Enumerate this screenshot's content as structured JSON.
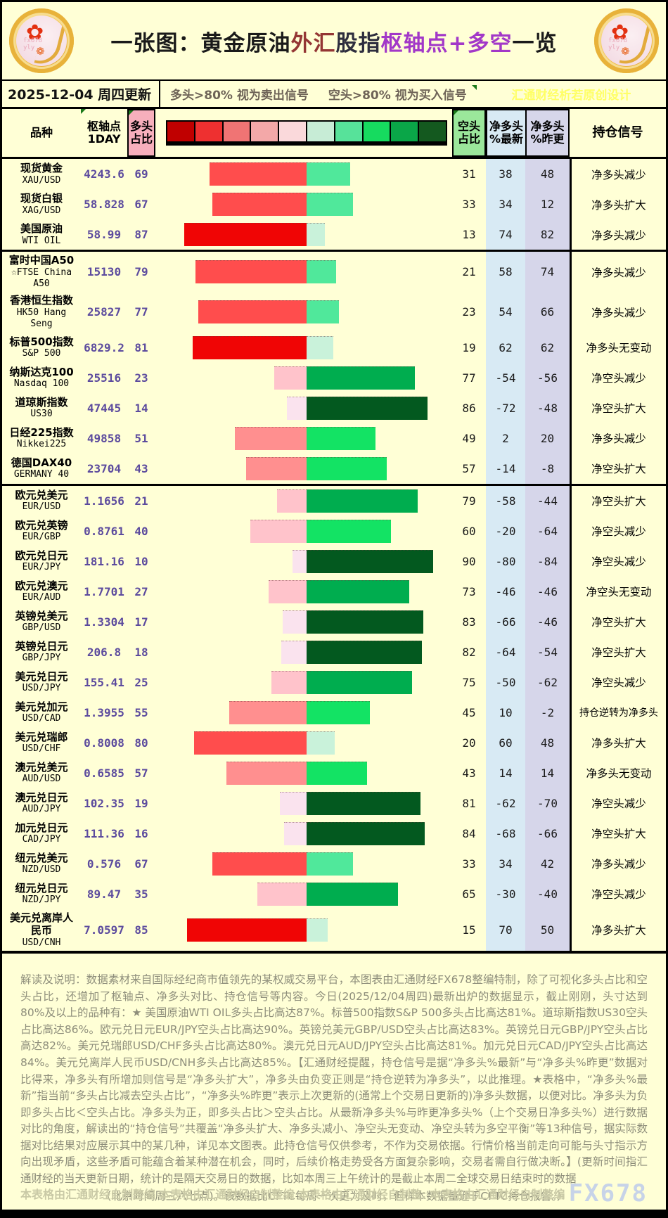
{
  "header": {
    "title_parts": [
      {
        "text": "一张图：黄金原油",
        "color": "#1a1a1a"
      },
      {
        "text": "外汇",
        "color": "#943634"
      },
      {
        "text": "股指",
        "color": "#2e2e3e"
      },
      {
        "text": "枢轴点+多空",
        "color": "#A238C8"
      },
      {
        "text": "一览",
        "color": "#1a1a1a"
      }
    ],
    "logo_watermark": "fx678\nyly"
  },
  "subheader": {
    "date": "2025-12-04 周四更新",
    "long_rule": "多头>80% 视为卖出信号",
    "short_rule": "空头>80% 视为买入信号",
    "credit": "汇通财经析若原创设计"
  },
  "table_headers": {
    "product": "品种",
    "pivot": "枢轴点\n1DAY",
    "long": "多头\n占比",
    "short": "空头\n占比",
    "net_new": "净多头\n%最新",
    "net_prev": "净多头\n%昨更",
    "signal": "持仓信号"
  },
  "colors": {
    "background": "#FFFFD6",
    "pink_header": "#F7AFBC",
    "green_header": "#9BE79B",
    "blue_column": "#D8EAF4",
    "lavender_column": "#D6D6EA",
    "purple_text": "#5C4B9E",
    "scale_squares": [
      "#C00000",
      "#EE3030",
      "#F07474",
      "#F3A8A8",
      "#FAD9DB",
      "#C7ECD6",
      "#57E29A",
      "#16DB5F",
      "#0AA648",
      "#14591F"
    ],
    "long_buckets": [
      [
        80,
        "#F00505"
      ],
      [
        60,
        "#FF4D4D"
      ],
      [
        40,
        "#FF8F8F"
      ],
      [
        20,
        "#FFC3CB"
      ],
      [
        0,
        "#FAE3EE"
      ]
    ],
    "short_buckets": [
      [
        80,
        "#03591F"
      ],
      [
        60,
        "#00AD4F"
      ],
      [
        40,
        "#13E364"
      ],
      [
        20,
        "#50E89B"
      ],
      [
        0,
        "#C9F2DA"
      ]
    ]
  },
  "chart_data": {
    "type": "bar",
    "subtype": "diverging-stacked",
    "title": "一张图：黄金原油外汇股指枢轴点+多空一览",
    "x_unit": "percent",
    "axis_note": "红色=多头占比(向左), 绿色=空头占比(向右), 每1%≈2px, 中轴=50%",
    "rows": [
      {
        "cn": "现货黄金",
        "en": "XAU/USD",
        "pivot": "4243.6",
        "long": 69,
        "short": 31,
        "net_new": 38,
        "net_prev": 48,
        "signal": "净多头减少",
        "section": false
      },
      {
        "cn": "现货白银",
        "en": "XAG/USD",
        "pivot": "58.828",
        "long": 67,
        "short": 33,
        "net_new": 34,
        "net_prev": 12,
        "signal": "净多头扩大",
        "section": false
      },
      {
        "cn": "美国原油",
        "en": "WTI OIL",
        "pivot": "58.99",
        "long": 87,
        "short": 13,
        "net_new": 74,
        "net_prev": 82,
        "signal": "净多头减少",
        "section": false
      },
      {
        "cn": "富时中国A50",
        "en": "☆FTSE China\nA50",
        "pivot": "15130",
        "long": 79,
        "short": 21,
        "net_new": 58,
        "net_prev": 74,
        "signal": "净多头减少",
        "section": true
      },
      {
        "cn": "香港恒生指数",
        "en": "HK50 Hang\nSeng",
        "pivot": "25827",
        "long": 77,
        "short": 23,
        "net_new": 54,
        "net_prev": 66,
        "signal": "净多头减少",
        "section": false
      },
      {
        "cn": "标普500指数",
        "en": "S&P 500",
        "pivot": "6829.2",
        "long": 81,
        "short": 19,
        "net_new": 62,
        "net_prev": 62,
        "signal": "净多头无变动",
        "section": false
      },
      {
        "cn": "纳斯达克100",
        "en": "Nasdaq 100",
        "pivot": "25516",
        "long": 23,
        "short": 77,
        "net_new": -54,
        "net_prev": -56,
        "signal": "净空头减少",
        "section": false
      },
      {
        "cn": "道琼斯指数",
        "en": "US30",
        "pivot": "47445",
        "long": 14,
        "short": 86,
        "net_new": -72,
        "net_prev": -48,
        "signal": "净空头扩大",
        "section": false
      },
      {
        "cn": "日经225指数",
        "en": "Nikkei225",
        "pivot": "49858",
        "long": 51,
        "short": 49,
        "net_new": 2,
        "net_prev": 20,
        "signal": "净多头减少",
        "section": false
      },
      {
        "cn": "德国DAX40",
        "en": "GERMANY 40",
        "pivot": "23704",
        "long": 43,
        "short": 57,
        "net_new": -14,
        "net_prev": -8,
        "signal": "净空头扩大",
        "section": false
      },
      {
        "cn": "欧元兑美元",
        "en": "EUR/USD",
        "pivot": "1.1656",
        "long": 21,
        "short": 79,
        "net_new": -58,
        "net_prev": -44,
        "signal": "净空头扩大",
        "section": true
      },
      {
        "cn": "欧元兑英镑",
        "en": "EUR/GBP",
        "pivot": "0.8761",
        "long": 40,
        "short": 60,
        "net_new": -20,
        "net_prev": -64,
        "signal": "净空头减少",
        "section": false
      },
      {
        "cn": "欧元兑日元",
        "en": "EUR/JPY",
        "pivot": "181.16",
        "long": 10,
        "short": 90,
        "net_new": -80,
        "net_prev": -84,
        "signal": "净空头减少",
        "section": false
      },
      {
        "cn": "欧元兑澳元",
        "en": "EUR/AUD",
        "pivot": "1.7701",
        "long": 27,
        "short": 73,
        "net_new": -46,
        "net_prev": -46,
        "signal": "净空头无变动",
        "section": false
      },
      {
        "cn": "英镑兑美元",
        "en": "GBP/USD",
        "pivot": "1.3304",
        "long": 17,
        "short": 83,
        "net_new": -66,
        "net_prev": -46,
        "signal": "净空头扩大",
        "section": false
      },
      {
        "cn": "英镑兑日元",
        "en": "GBP/JPY",
        "pivot": "206.8",
        "long": 18,
        "short": 82,
        "net_new": -64,
        "net_prev": -54,
        "signal": "净空头扩大",
        "section": false
      },
      {
        "cn": "美元兑日元",
        "en": "USD/JPY",
        "pivot": "155.41",
        "long": 25,
        "short": 75,
        "net_new": -50,
        "net_prev": -62,
        "signal": "净空头减少",
        "section": false
      },
      {
        "cn": "美元兑加元",
        "en": "USD/CAD",
        "pivot": "1.3955",
        "long": 55,
        "short": 45,
        "net_new": 10,
        "net_prev": -2,
        "signal": "持仓逆转为净多头",
        "section": false
      },
      {
        "cn": "美元兑瑞郎",
        "en": "USD/CHF",
        "pivot": "0.8008",
        "long": 80,
        "short": 20,
        "net_new": 60,
        "net_prev": 48,
        "signal": "净多头扩大",
        "section": false
      },
      {
        "cn": "澳元兑美元",
        "en": "AUD/USD",
        "pivot": "0.6585",
        "long": 57,
        "short": 43,
        "net_new": 14,
        "net_prev": 14,
        "signal": "净多头无变动",
        "section": false
      },
      {
        "cn": "澳元兑日元",
        "en": "AUD/JPY",
        "pivot": "102.35",
        "long": 19,
        "short": 81,
        "net_new": -62,
        "net_prev": -70,
        "signal": "净空头减少",
        "section": false
      },
      {
        "cn": "加元兑日元",
        "en": "CAD/JPY",
        "pivot": "111.36",
        "long": 16,
        "short": 84,
        "net_new": -68,
        "net_prev": -66,
        "signal": "净空头扩大",
        "section": false
      },
      {
        "cn": "纽元兑美元",
        "en": "NZD/USD",
        "pivot": "0.576",
        "long": 67,
        "short": 33,
        "net_new": 34,
        "net_prev": 42,
        "signal": "净多头减少",
        "section": false
      },
      {
        "cn": "纽元兑日元",
        "en": "NZD/JPY",
        "pivot": "89.47",
        "long": 35,
        "short": 65,
        "net_new": -30,
        "net_prev": -40,
        "signal": "净空头减少",
        "section": false
      },
      {
        "cn": "美元兑离岸人\n民币",
        "en": "USD/CNH",
        "pivot": "7.0597",
        "long": 85,
        "short": 15,
        "net_new": 70,
        "net_prev": 50,
        "signal": "净多头扩大",
        "section": false
      }
    ]
  },
  "footer": {
    "body": "解读及说明：数据素材来自国际经纪商市值领先的某权威交易平台，本图表由汇通财经FX678整编特制，除了可视化多头占比和空头占比，还增加了枢轴点、净多头对比、持仓信号等内容。今日(2025/12/04周四)最新出炉的数据显示，截止刚刚，头寸达到80%及以上的品种有：★ 美国原油WTI OIL多头占比高达87%。标普500指数S&P 500多头占比高达81%。道琼斯指数US30空头占比高达86%。欧元兑日元EUR/JPY空头占比高达90%。英镑兑美元GBP/USD空头占比高达83%。英镑兑日元GBP/JPY空头占比高达82%。美元兑瑞郎USD/CHF多头占比高达80%。澳元兑日元AUD/JPY空头占比高达81%。加元兑日元CAD/JPY空头占比高达84%。美元兑离岸人民币USD/CNH多头占比高达85%。【汇通财经提醒，持仓信号是据“净多头%最新”与“净多头%昨更”数据对比得来，净多头有所增加则信号是“净多头扩大”，净多头由负变正则是“持仓逆转为净多头”，以此推理。★表格中，“净多头%最新”指当前“多头占比减去空头占比”，“净多头%昨更”表示上次更新的(通常上个交易日更新的)净多头数据，以便对比。净多头为负 即多头占比＜空头占比。净多头为正，即多头占比＞空头占比。从最新净多头%与昨更净多头%（上个交易日净多头%）进行数据对比的角度，解读出的“持仓信号”共覆盖“净多头扩大、净多头减小、净空头无变动、净空头转为多空平衡”等13种信号，据实际数据对比结果对应展示其中的某几种，详见本文图表。此持仓信号仅供参考，不作为交易依据。行情价格当前走向可能与头寸指示方向出现矛盾，这些矛盾可能蕴含着某种潜在机会，同时，后续价格走势受各方面复杂影响，交易者需自行做决断。】(更新时间指汇通财经的当天更新日期，统计的是隔天交易日的数据，比如本周三上午统计的是截止本周二全球交易日结束时的数据",
    "last_line": "（北京时间周三六七点)。该数据比CFTC每周一次更为及时，但样本数据量逊于CFTC持仓报告。）",
    "credit1": "本表格由汇通财经自制整编",
    "credit2": "本表格由汇通财经自制整编",
    "credit3": "本表格由汇通财经自制整:",
    "credit4": "本表格由汇通财经自制整编",
    "watermark": "FX678"
  }
}
